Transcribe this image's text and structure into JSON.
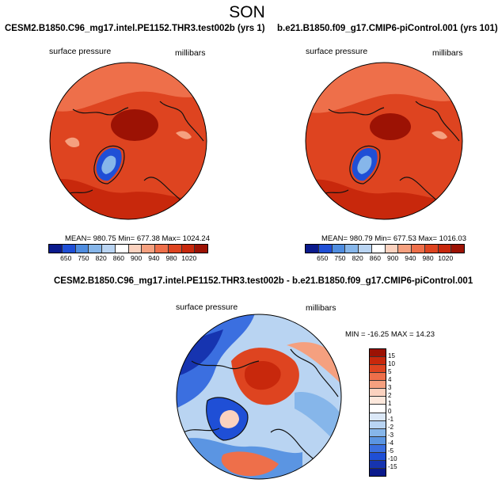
{
  "season": "SON",
  "colors": {
    "abs_scale": [
      "#0a1a8c",
      "#1f4fd6",
      "#4f8de0",
      "#86b6ea",
      "#b9d4f2",
      "#ffffff",
      "#fbd2bf",
      "#f5a07f",
      "#ee6f4a",
      "#de4420",
      "#c8280c",
      "#9c1204"
    ],
    "diff_scale": [
      "#9c1204",
      "#c8280c",
      "#de4420",
      "#ee6f4a",
      "#f5a07f",
      "#fbd2bf",
      "#fde8dc",
      "#ffffff",
      "#dbe8f7",
      "#b9d4f2",
      "#86b6ea",
      "#5b95e2",
      "#3b6fe0",
      "#1f4fd6",
      "#1634b0",
      "#0a1a8c"
    ]
  },
  "panels": [
    {
      "title": "CESM2.B1850.C96_mg17.intel.PE1152.THR3.test002b (yrs 1)",
      "left_label": "surface pressure",
      "right_label": "millibars",
      "stats": "MEAN= 980.75   Min= 677.38   Max= 1024.24",
      "ticks": [
        "650",
        "750",
        "820",
        "860",
        "900",
        "940",
        "980",
        "1020"
      ]
    },
    {
      "title": "b.e21.B1850.f09_g17.CMIP6-piControl.001 (yrs 101)",
      "left_label": "surface pressure",
      "right_label": "millibars",
      "stats": "MEAN= 980.79   Min= 677.53   Max= 1016.03",
      "ticks": [
        "650",
        "750",
        "820",
        "860",
        "900",
        "940",
        "980",
        "1020"
      ]
    }
  ],
  "diff_panel": {
    "title": "CESM2.B1850.C96_mg17.intel.PE1152.THR3.test002b - b.e21.B1850.f09_g17.CMIP6-piControl.001",
    "left_label": "surface pressure",
    "right_label": "millibars",
    "stats": "MIN = -16.25  MAX =  14.23",
    "ticks": [
      "15",
      "10",
      "5",
      "4",
      "3",
      "2",
      "1",
      "0",
      "-1",
      "-2",
      "-3",
      "-4",
      "-5",
      "-10",
      "-15"
    ]
  }
}
